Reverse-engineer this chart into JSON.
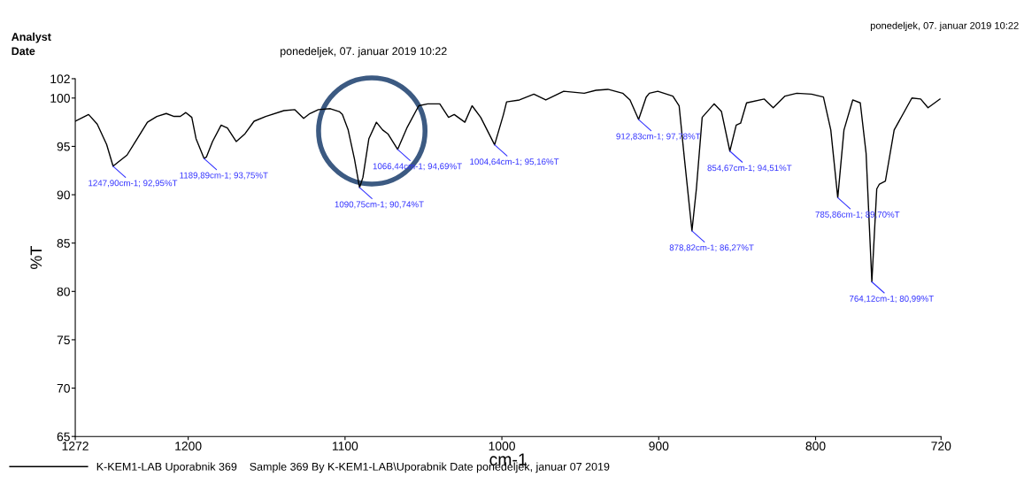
{
  "chart_data": {
    "type": "line",
    "xlabel": "cm-1",
    "ylabel": "%T",
    "xlim": [
      1272,
      720
    ],
    "xticks": [
      1272,
      1200,
      1100,
      1000,
      900,
      800,
      720
    ],
    "ylim": [
      65,
      102
    ],
    "yticks": [
      65,
      70,
      75,
      80,
      85,
      90,
      95,
      100,
      102
    ],
    "grid": false,
    "legend": "bottom",
    "marker": "none",
    "line_style": "solid",
    "series": [
      {
        "name": "K-KEM1-LAB Uporabnik 369    Sample 369 By K-KEM1-LAB\\Uporabnik Date ponedeljek, januar 07 2019",
        "color": "#000000",
        "x": [
          1272,
          1263.5,
          1258,
          1252,
          1247.9,
          1239,
          1233.6,
          1226,
          1220,
          1214,
          1209,
          1205,
          1201.5,
          1197.7,
          1195,
          1189.89,
          1188.4,
          1184.5,
          1179,
          1175,
          1169.4,
          1163.8,
          1158,
          1150.6,
          1139,
          1132,
          1126.4,
          1122.4,
          1117,
          1109.4,
          1103.7,
          1101.7,
          1098,
          1094,
          1090.75,
          1088.6,
          1084.8,
          1080,
          1076,
          1072.7,
          1066.44,
          1060.3,
          1053,
          1047.3,
          1039.6,
          1034,
          1030.4,
          1023.6,
          1019,
          1013.5,
          1004.64,
          999,
          997,
          988.8,
          979.6,
          972,
          960.6,
          947.5,
          940,
          932.4,
          923,
          918.3,
          912.83,
          908,
          906,
          900.6,
          891,
          887,
          883.6,
          878.82,
          876,
          872.3,
          864.7,
          860,
          854.67,
          850.6,
          847.8,
          844,
          832.7,
          827,
          819.5,
          812,
          802.6,
          795,
          790.3,
          785.86,
          781.9,
          776.3,
          771.5,
          767.8,
          764.12,
          761,
          759.3,
          755.5,
          749.9,
          738.6,
          733,
          728.3,
          720.7
        ],
        "values": [
          97.6,
          98.3,
          97.3,
          95.2,
          92.95,
          94.1,
          95.5,
          97.5,
          98.1,
          98.4,
          98.1,
          98.1,
          98.5,
          98.0,
          95.8,
          93.75,
          93.9,
          95.5,
          97.2,
          96.9,
          95.5,
          96.3,
          97.6,
          98.1,
          98.7,
          98.8,
          97.9,
          98.4,
          98.8,
          98.9,
          98.6,
          98.3,
          96.7,
          93.7,
          90.74,
          91.8,
          95.8,
          97.5,
          96.7,
          96.3,
          94.69,
          97.0,
          99.2,
          99.4,
          99.4,
          98.0,
          98.3,
          97.5,
          99.2,
          98.0,
          95.16,
          98.3,
          99.6,
          99.8,
          100.4,
          99.8,
          100.7,
          100.5,
          100.8,
          100.9,
          100.5,
          99.8,
          97.78,
          100.1,
          100.5,
          100.7,
          100.2,
          99.2,
          93.7,
          86.27,
          90.6,
          98.0,
          99.4,
          98.6,
          94.51,
          97.2,
          97.4,
          99.5,
          99.9,
          99.0,
          100.2,
          100.5,
          100.4,
          100.1,
          96.7,
          89.7,
          96.7,
          99.8,
          99.5,
          94.3,
          80.99,
          90.6,
          91.1,
          91.4,
          96.7,
          100.0,
          99.9,
          99.0,
          99.9
        ]
      }
    ],
    "annotations": [
      "Analyst",
      "Date",
      "ponedeljek, 07. januar 2019 10:22",
      "ponedeljek, 07. januar 2019 10:22",
      {
        "text": "1247,90cm-1; 92,95%T",
        "x": 1247.9,
        "y": 92.95
      },
      {
        "text": "1189,89cm-1; 93,75%T",
        "x": 1189.89,
        "y": 93.75
      },
      {
        "text": "1090,75cm-1; 90,74%T",
        "x": 1090.75,
        "y": 90.74
      },
      {
        "text": "1066,44cm-1; 94,69%T",
        "x": 1066.44,
        "y": 94.69
      },
      {
        "text": "1004,64cm-1; 95,16%T",
        "x": 1004.64,
        "y": 95.16
      },
      {
        "text": "912,83cm-1; 97,78%T",
        "x": 912.83,
        "y": 97.78
      },
      {
        "text": "878,82cm-1; 86,27%T",
        "x": 878.82,
        "y": 86.27
      },
      {
        "text": "854,67cm-1; 94,51%T",
        "x": 854.67,
        "y": 94.51
      },
      {
        "text": "785,86cm-1; 89,70%T",
        "x": 785.86,
        "y": 89.7
      },
      {
        "text": "764,12cm-1; 80,99%T",
        "x": 764.12,
        "y": 80.99
      }
    ]
  }
}
